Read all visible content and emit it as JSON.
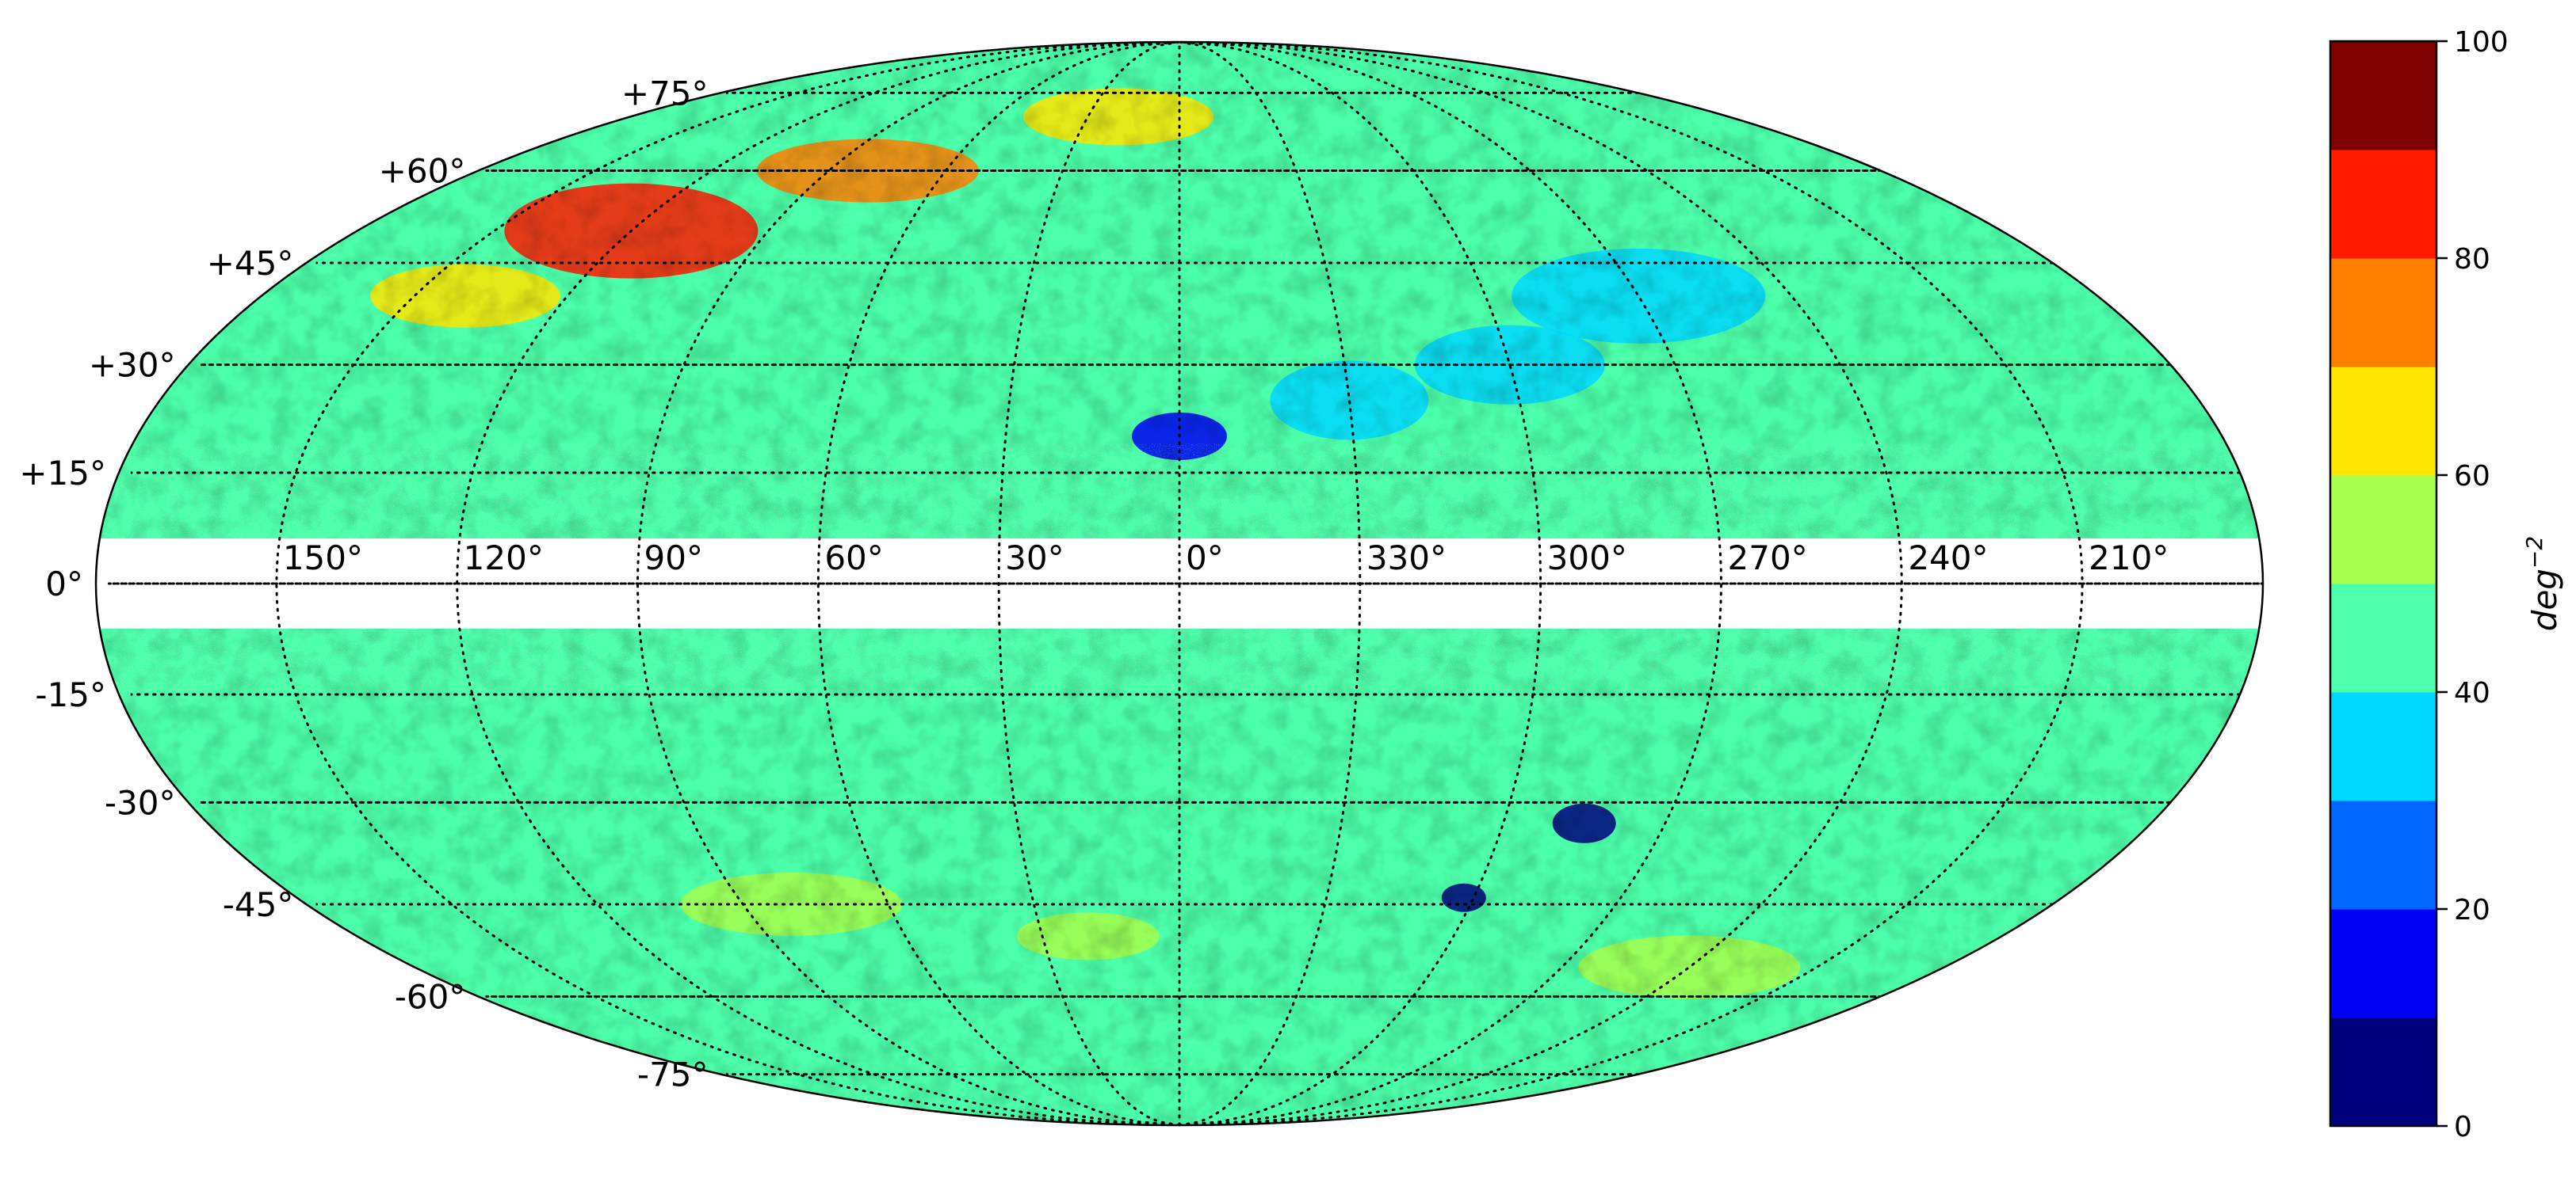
{
  "chart_data": {
    "type": "heatmap",
    "projection": "mollweide",
    "coordinate_system": "galactic",
    "map": {
      "longitude_ticks": [
        "150°",
        "120°",
        "90°",
        "60°",
        "30°",
        "0°",
        "330°",
        "300°",
        "270°",
        "240°",
        "210°"
      ],
      "longitude_values": [
        150,
        120,
        90,
        60,
        30,
        0,
        330,
        300,
        270,
        240,
        210
      ],
      "latitude_ticks": [
        "+75°",
        "+60°",
        "+45°",
        "+30°",
        "+15°",
        "0°",
        "-15°",
        "-30°",
        "-45°",
        "-60°",
        "-75°"
      ],
      "latitude_values": [
        75,
        60,
        45,
        30,
        15,
        0,
        -15,
        -30,
        -45,
        -60,
        -75
      ],
      "graticule": "dotted",
      "masked_band_deg": [
        -5,
        5
      ]
    },
    "colorbar": {
      "label": "deg",
      "label_exponent": "−2",
      "range": [
        0,
        100
      ],
      "ticks": [
        "0",
        "20",
        "40",
        "60",
        "80",
        "100"
      ],
      "tick_values": [
        0,
        20,
        40,
        60,
        80,
        100
      ],
      "levels": [
        {
          "min": 0,
          "max": 10,
          "color": "#00007f"
        },
        {
          "min": 10,
          "max": 20,
          "color": "#0000f5"
        },
        {
          "min": 20,
          "max": 30,
          "color": "#0066ff"
        },
        {
          "min": 30,
          "max": 40,
          "color": "#00d8ff"
        },
        {
          "min": 40,
          "max": 50,
          "color": "#4cffaa"
        },
        {
          "min": 50,
          "max": 60,
          "color": "#a6ff4c"
        },
        {
          "min": 60,
          "max": 70,
          "color": "#ffe500"
        },
        {
          "min": 70,
          "max": 80,
          "color": "#ff7f00"
        },
        {
          "min": 80,
          "max": 90,
          "color": "#ff1a00"
        },
        {
          "min": 90,
          "max": 100,
          "color": "#7f0000"
        }
      ]
    }
  }
}
